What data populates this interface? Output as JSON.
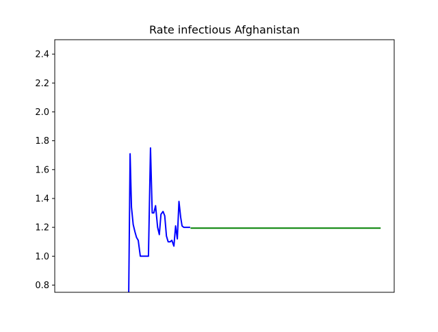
{
  "chart_data": {
    "type": "line",
    "title": "Rate infectious Afghanistan",
    "xlabel": "",
    "ylabel": "",
    "x_tick_labels_visible": false,
    "xlim": [
      0,
      100
    ],
    "ylim": [
      0.75,
      2.5
    ],
    "y_ticks": [
      0.8,
      1.0,
      1.2,
      1.4,
      1.6,
      1.8,
      2.0,
      2.2,
      2.4
    ],
    "y_tick_labels": [
      "0.8",
      "1.0",
      "1.2",
      "1.4",
      "1.6",
      "1.8",
      "2.0",
      "2.2",
      "2.4"
    ],
    "grid": false,
    "legend": false,
    "series": [
      {
        "color": "#0000ff",
        "x": [
          21.8,
          22.2,
          22.6,
          23.1,
          23.6,
          24.1,
          24.6,
          25.2,
          25.8,
          26.4,
          27.0,
          27.6,
          28.2,
          28.7,
          29.2,
          29.7,
          30.3,
          30.8,
          31.3,
          31.9,
          32.4,
          32.9,
          33.4,
          34.0,
          34.5,
          35.1,
          35.6,
          36.1,
          36.6,
          37.1,
          37.5,
          38.0,
          38.5,
          39.0,
          39.4,
          39.9
        ],
        "y": [
          0.75,
          1.71,
          1.34,
          1.22,
          1.17,
          1.13,
          1.11,
          1.0,
          1.0,
          1.0,
          1.0,
          1.0,
          1.75,
          1.3,
          1.3,
          1.35,
          1.2,
          1.15,
          1.29,
          1.31,
          1.28,
          1.14,
          1.1,
          1.1,
          1.11,
          1.07,
          1.21,
          1.12,
          1.38,
          1.27,
          1.21,
          1.2,
          1.2,
          1.2,
          1.2,
          1.2
        ]
      },
      {
        "color": "#008000",
        "x": [
          40.0,
          96.0
        ],
        "y": [
          1.195,
          1.195
        ]
      }
    ]
  }
}
